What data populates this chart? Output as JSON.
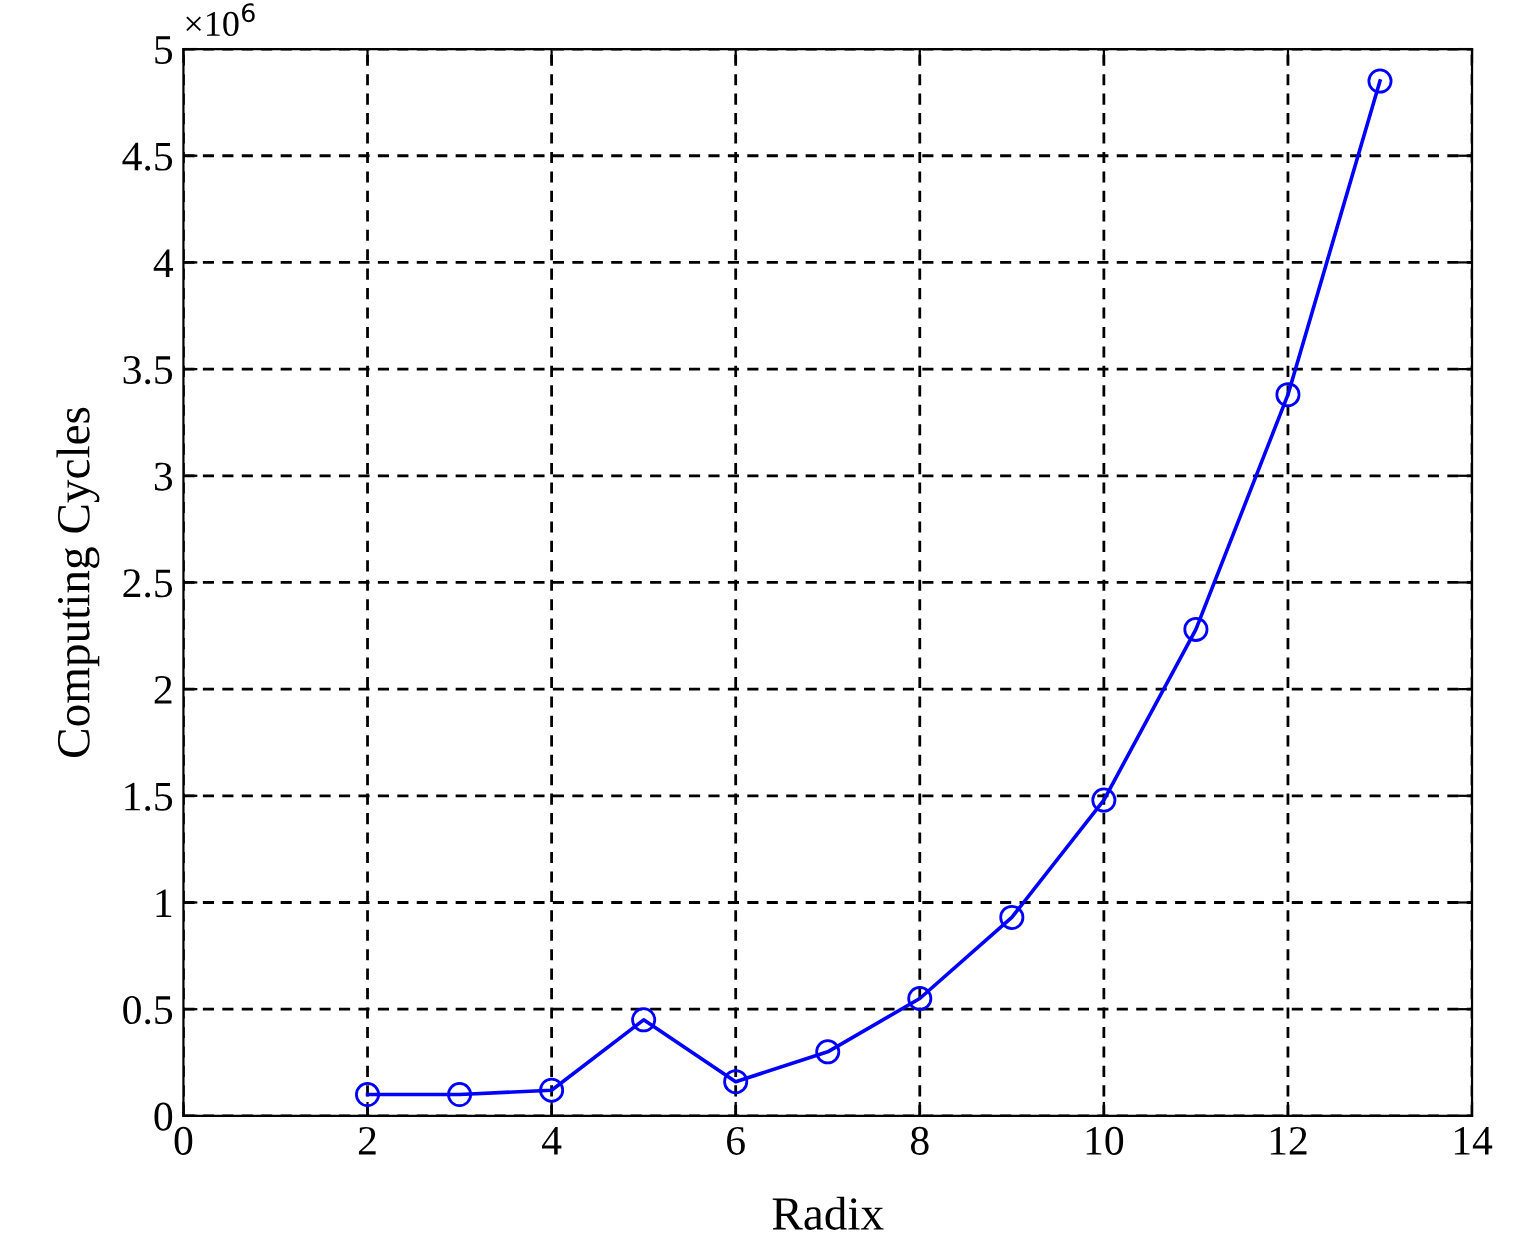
{
  "chart_data": {
    "type": "line",
    "xlabel": "Radix",
    "ylabel": "Computing Cycles",
    "annotations": [
      "×10$^{6}$"
    ],
    "series": [
      {
        "color": "#0000ff",
        "x": [
          2,
          3,
          4,
          5,
          6,
          7,
          8,
          9,
          10,
          11,
          12,
          13
        ],
        "values": [
          0.1,
          0.1,
          0.12,
          0.45,
          0.16,
          0.3,
          0.55,
          0.93,
          1.48,
          2.28,
          3.38,
          4.85
        ]
      }
    ],
    "xlim": [
      0,
      14
    ],
    "xticks": [
      0,
      2,
      4,
      6,
      8,
      10,
      12,
      14
    ],
    "ylim": [
      0,
      5
    ],
    "yticks": [
      0,
      0.5,
      1,
      1.5,
      2,
      2.5,
      3,
      3.5,
      4,
      4.5,
      5
    ],
    "grid": true,
    "marker": "circle",
    "line_style": "solid",
    "legend": false
  }
}
